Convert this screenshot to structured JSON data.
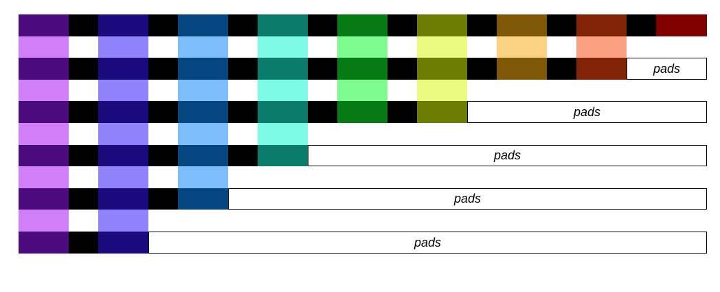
{
  "pad_label": "pads",
  "colors": {
    "dark": [
      "#4b0a7e",
      "#1a0a7e",
      "#064680",
      "#0b7c6a",
      "#067a15",
      "#6d7d04",
      "#7e5707",
      "#812306",
      "#800000"
    ],
    "light": [
      "#d07ff8",
      "#8f82fb",
      "#7dbdfc",
      "#7dfbe5",
      "#7efb8f",
      "#e9fb7e",
      "#fbd283",
      "#fba080"
    ],
    "separator_dark": "#000000",
    "separator_light": "#ffffff",
    "border": "#000000"
  },
  "rows": [
    {
      "kind": "dark",
      "blocks": 9,
      "pad": false
    },
    {
      "kind": "light",
      "blocks": 8,
      "pad": false
    },
    {
      "kind": "dark",
      "blocks": 8,
      "pad": true
    },
    {
      "kind": "light",
      "blocks": 6,
      "pad": false
    },
    {
      "kind": "dark",
      "blocks": 6,
      "pad": true
    },
    {
      "kind": "light",
      "blocks": 4,
      "pad": false
    },
    {
      "kind": "dark",
      "blocks": 4,
      "pad": true
    },
    {
      "kind": "light",
      "blocks": 3,
      "pad": false
    },
    {
      "kind": "dark",
      "blocks": 3,
      "pad": true
    },
    {
      "kind": "light",
      "blocks": 2,
      "pad": false
    },
    {
      "kind": "dark",
      "blocks": 2,
      "pad": true
    }
  ]
}
